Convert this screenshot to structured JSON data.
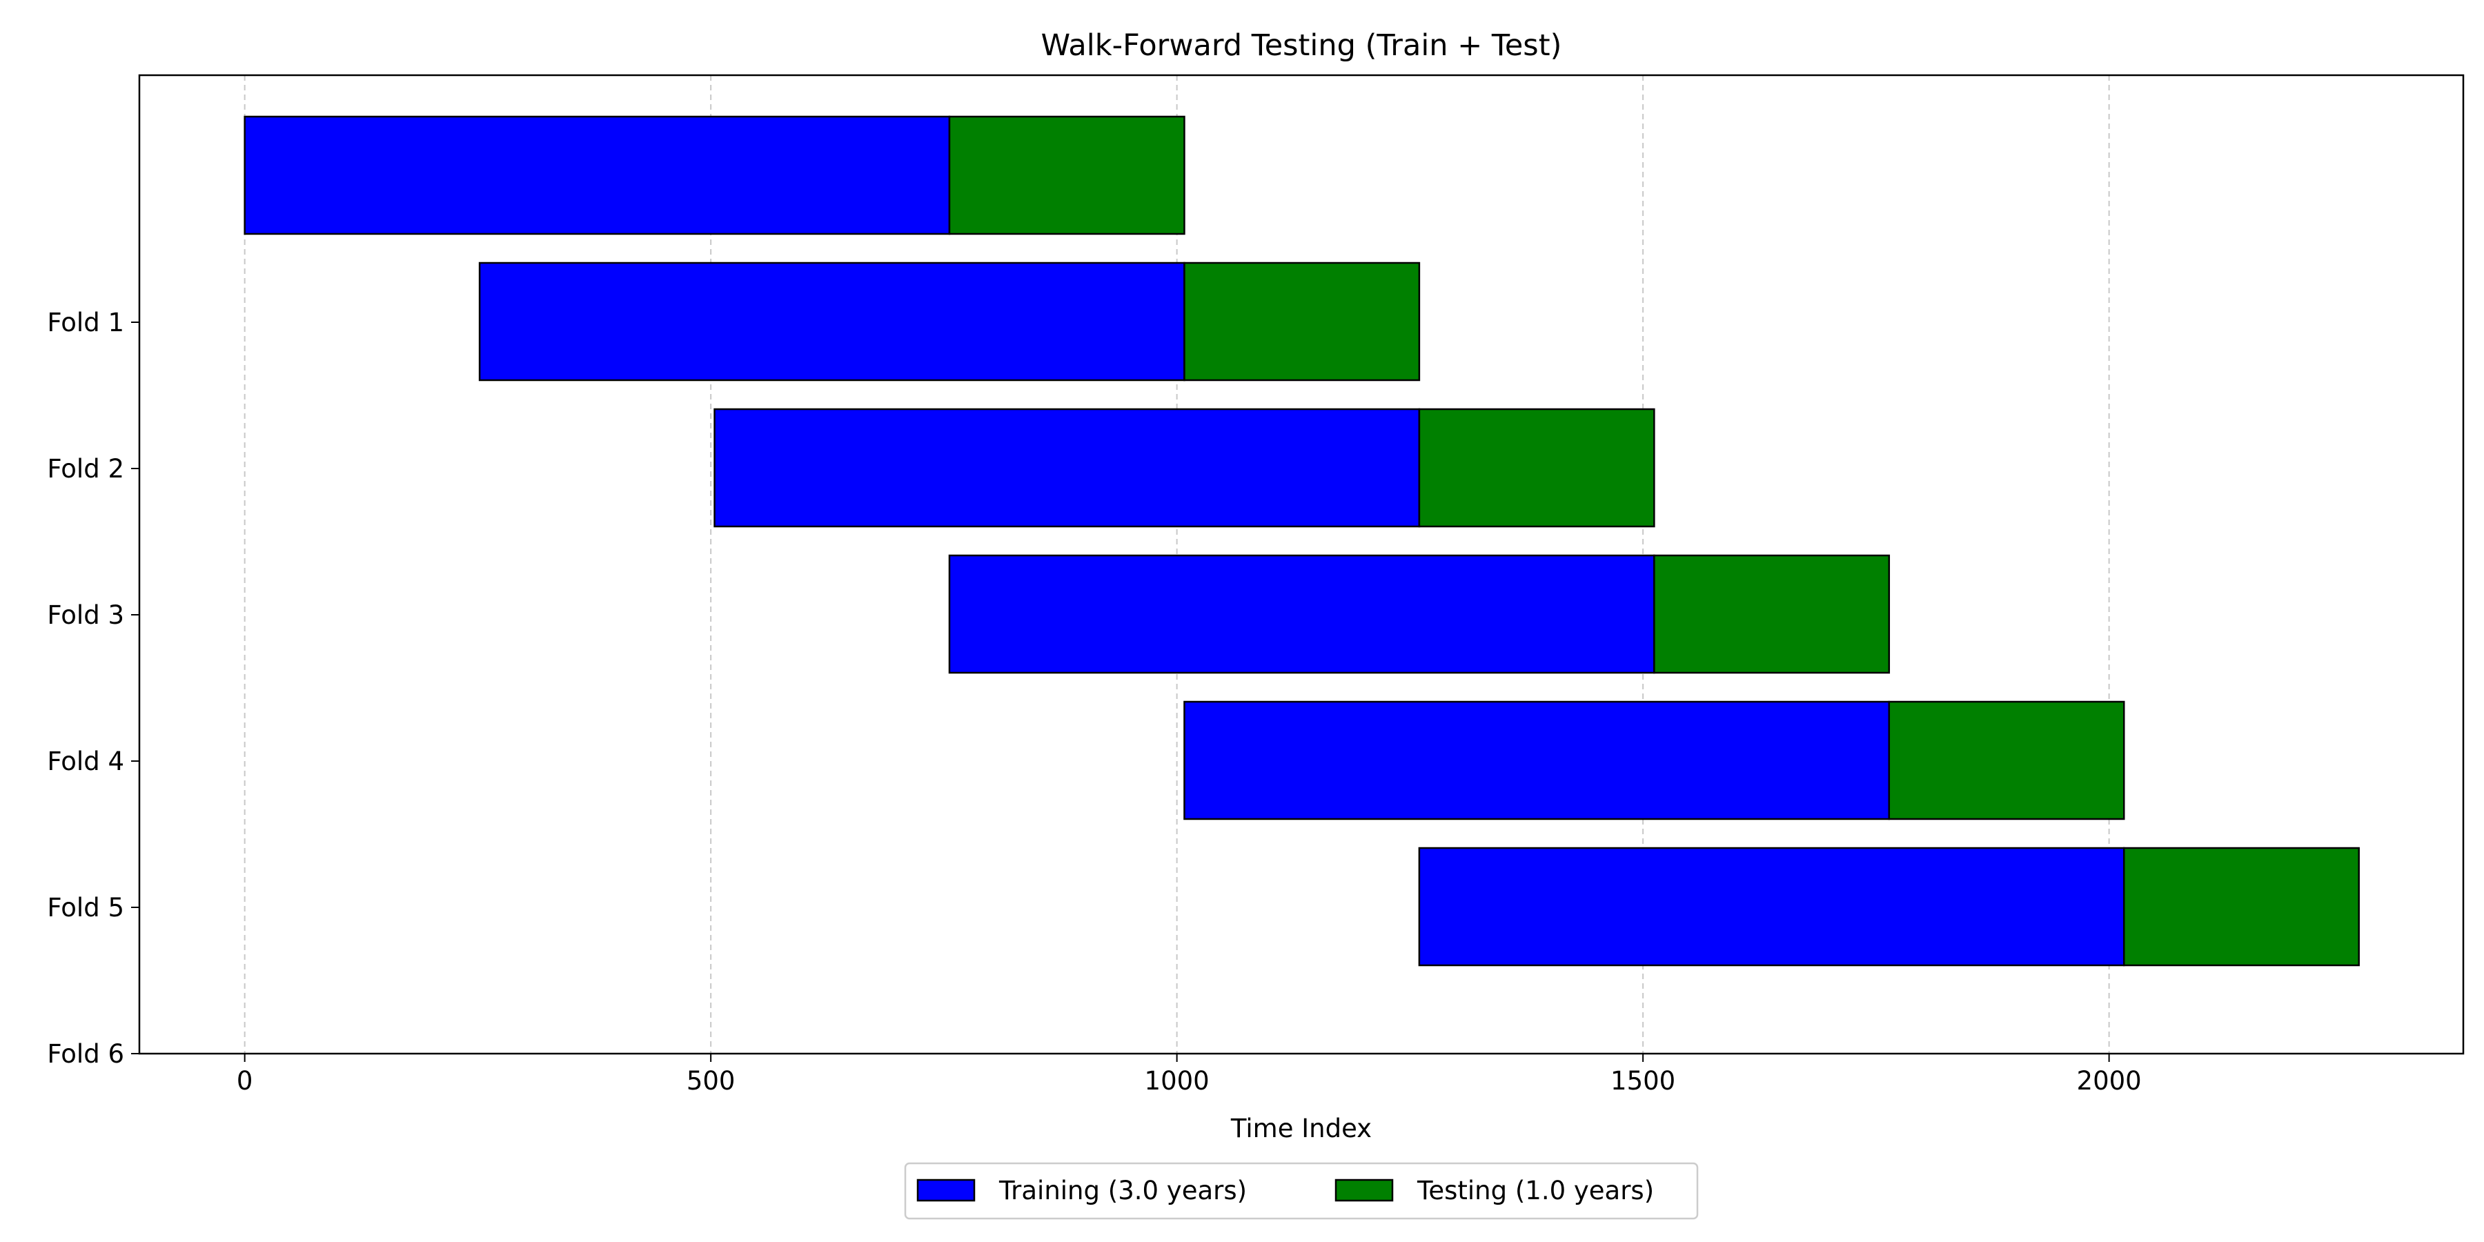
{
  "chart_data": {
    "type": "bar",
    "orientation": "horizontal",
    "stacked": true,
    "title": "Walk-Forward Testing (Train + Test)",
    "xlabel": "Time Index",
    "ylabel": "",
    "xlim": [
      -113,
      2380
    ],
    "x_ticks": [
      0,
      500,
      1000,
      1500,
      2000
    ],
    "x_tick_labels": [
      "0",
      "500",
      "1000",
      "1500",
      "2000"
    ],
    "y_tick_labels": [
      "Fold 1",
      "Fold 2",
      "Fold 3",
      "Fold 4",
      "Fold 5",
      "Fold 6"
    ],
    "grid": "x-dashed",
    "legend_position": "bottom-center",
    "series": [
      {
        "name": "Training (3.0 years)",
        "color": "#0000ff",
        "starts": [
          0,
          252,
          504,
          756,
          1008,
          1260
        ],
        "ends": [
          756,
          1008,
          1260,
          1512,
          1764,
          2016
        ]
      },
      {
        "name": "Testing (1.0 years)",
        "color": "#008000",
        "starts": [
          756,
          1008,
          1260,
          1512,
          1764,
          2016
        ],
        "ends": [
          1008,
          1260,
          1512,
          1764,
          2016,
          2268
        ]
      }
    ]
  }
}
